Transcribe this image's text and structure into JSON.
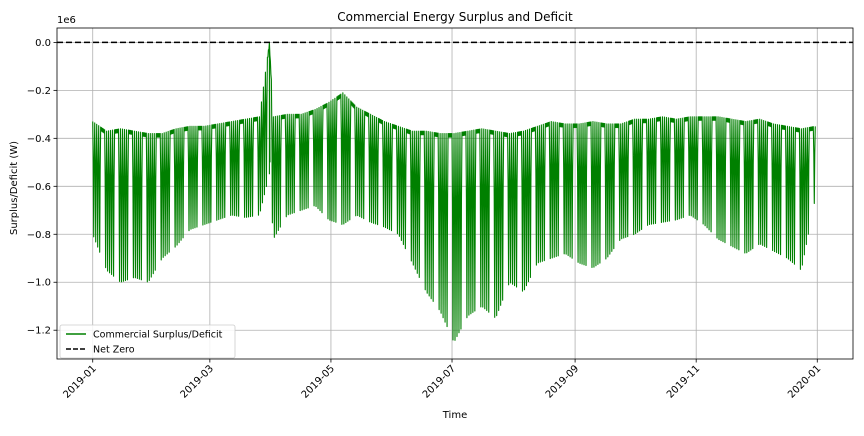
{
  "chart_data": {
    "type": "line",
    "title": "Commercial Energy Surplus and Deficit",
    "xlabel": "Time",
    "ylabel": "Surplus/Deficit (W)",
    "y_scale_note": "1e6",
    "x_axis_type": "date",
    "xlim": [
      "2018-12-14",
      "2020-01-19"
    ],
    "ylim": [
      -1.32,
      0.06
    ],
    "y_units_multiplier": 1000000,
    "x_ticks": [
      "2019-01",
      "2019-03",
      "2019-05",
      "2019-07",
      "2019-09",
      "2019-11",
      "2020-01"
    ],
    "y_ticks": [
      {
        "value": 0.0,
        "label": "0.0"
      },
      {
        "value": -0.2,
        "label": "−0.2"
      },
      {
        "value": -0.4,
        "label": "−0.4"
      },
      {
        "value": -0.6,
        "label": "−0.6"
      },
      {
        "value": -0.8,
        "label": "−0.8"
      },
      {
        "value": -1.0,
        "label": "−1.0"
      },
      {
        "value": -1.2,
        "label": "−1.2"
      }
    ],
    "grid": true,
    "legend_position": "lower-left",
    "series": [
      {
        "name": "Commercial Surplus/Deficit",
        "color": "#008000",
        "style": "solid",
        "envelope": {
          "x": [
            "2019-01-01",
            "2019-01-08",
            "2019-01-15",
            "2019-01-22",
            "2019-01-29",
            "2019-02-05",
            "2019-02-12",
            "2019-02-19",
            "2019-02-26",
            "2019-03-05",
            "2019-03-12",
            "2019-03-19",
            "2019-03-26",
            "2019-03-31",
            "2019-04-02",
            "2019-04-09",
            "2019-04-16",
            "2019-04-23",
            "2019-04-30",
            "2019-05-07",
            "2019-05-14",
            "2019-05-21",
            "2019-05-28",
            "2019-06-04",
            "2019-06-11",
            "2019-06-18",
            "2019-06-25",
            "2019-07-02",
            "2019-07-09",
            "2019-07-16",
            "2019-07-23",
            "2019-07-30",
            "2019-08-06",
            "2019-08-13",
            "2019-08-20",
            "2019-08-27",
            "2019-09-03",
            "2019-09-10",
            "2019-09-17",
            "2019-09-24",
            "2019-10-01",
            "2019-10-08",
            "2019-10-15",
            "2019-10-22",
            "2019-10-29",
            "2019-11-05",
            "2019-11-12",
            "2019-11-19",
            "2019-11-26",
            "2019-12-03",
            "2019-12-10",
            "2019-12-17",
            "2019-12-24",
            "2019-12-31"
          ],
          "upper": [
            -0.33,
            -0.37,
            -0.36,
            -0.37,
            -0.38,
            -0.38,
            -0.36,
            -0.35,
            -0.35,
            -0.34,
            -0.33,
            -0.32,
            -0.31,
            0.0,
            -0.31,
            -0.3,
            -0.3,
            -0.28,
            -0.25,
            -0.21,
            -0.27,
            -0.3,
            -0.33,
            -0.35,
            -0.37,
            -0.37,
            -0.38,
            -0.38,
            -0.37,
            -0.36,
            -0.37,
            -0.38,
            -0.37,
            -0.35,
            -0.33,
            -0.34,
            -0.34,
            -0.33,
            -0.34,
            -0.34,
            -0.32,
            -0.32,
            -0.31,
            -0.32,
            -0.31,
            -0.31,
            -0.31,
            -0.32,
            -0.33,
            -0.32,
            -0.34,
            -0.35,
            -0.36,
            -0.35
          ],
          "lower": [
            -0.8,
            -0.95,
            -1.0,
            -0.98,
            -1.0,
            -0.9,
            -0.85,
            -0.78,
            -0.76,
            -0.74,
            -0.72,
            -0.73,
            -0.72,
            -0.55,
            -0.82,
            -0.72,
            -0.7,
            -0.68,
            -0.74,
            -0.76,
            -0.72,
            -0.75,
            -0.77,
            -0.8,
            -0.92,
            -1.04,
            -1.12,
            -1.25,
            -1.14,
            -1.1,
            -1.15,
            -1.0,
            -1.04,
            -0.92,
            -0.9,
            -0.88,
            -0.92,
            -0.94,
            -0.9,
            -0.82,
            -0.8,
            -0.76,
            -0.75,
            -0.74,
            -0.72,
            -0.76,
            -0.82,
            -0.85,
            -0.88,
            -0.84,
            -0.87,
            -0.9,
            -0.95,
            -0.65
          ]
        }
      },
      {
        "name": "Net Zero",
        "color": "#000000",
        "style": "dashed",
        "y_constant": 0.0
      }
    ]
  }
}
